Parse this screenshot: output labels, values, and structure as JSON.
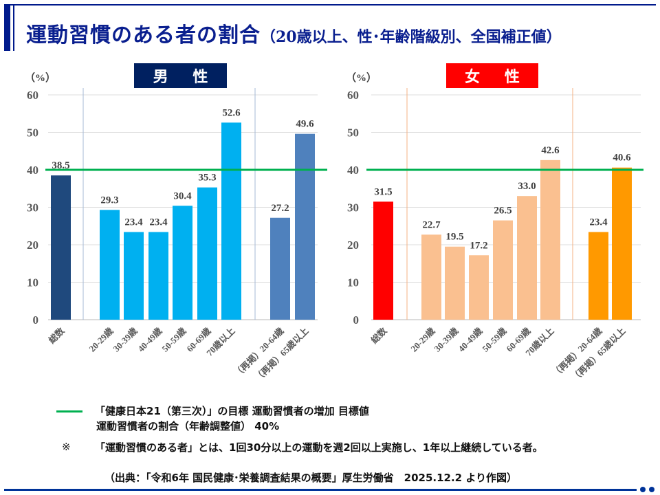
{
  "title": {
    "main": "運動習慣のある者の割合",
    "sub": "（20歳以上、性･年齢階級別、全国補正値）"
  },
  "colors": {
    "title": "#0a1f8f",
    "male_label_bg": "#002060",
    "female_label_bg": "#ff0000",
    "target_line": "#00b050",
    "male_total": "#1f497d",
    "male_age": "#00b0f0",
    "male_reprint": "#4f81bd",
    "female_total": "#ff0000",
    "female_age": "#fac090",
    "female_reprint": "#ff9900",
    "male_separator": "#a5b8d6",
    "female_separator": "#f4b183"
  },
  "chart_data": [
    {
      "type": "bar",
      "title": "男 性",
      "ylabel": "（%）",
      "ylim": [
        0,
        60
      ],
      "yticks": [
        0,
        10,
        20,
        30,
        40,
        50,
        60
      ],
      "grid": true,
      "categories": [
        "総数",
        "20-29歳",
        "30-39歳",
        "40-49歳",
        "50-59歳",
        "60-69歳",
        "70歳以上",
        "（再掲）20-64歳",
        "（再掲）65歳以上"
      ],
      "values": [
        38.5,
        29.3,
        23.4,
        23.4,
        30.4,
        35.3,
        52.6,
        27.2,
        49.6
      ],
      "value_labels": [
        "38.5",
        "29.3",
        "23.4",
        "23.4",
        "30.4",
        "35.3",
        "52.6",
        "27.2",
        "49.6"
      ],
      "groups": [
        "total",
        "age",
        "age",
        "age",
        "age",
        "age",
        "age",
        "reprint",
        "reprint"
      ],
      "target_line": 40
    },
    {
      "type": "bar",
      "title": "女 性",
      "ylabel": "（%）",
      "ylim": [
        0,
        60
      ],
      "yticks": [
        0,
        10,
        20,
        30,
        40,
        50,
        60
      ],
      "grid": true,
      "categories": [
        "総数",
        "20-29歳",
        "30-39歳",
        "40-49歳",
        "50-59歳",
        "60-69歳",
        "70歳以上",
        "（再掲）20-64歳",
        "（再掲）65歳以上"
      ],
      "values": [
        31.5,
        22.7,
        19.5,
        17.2,
        26.5,
        33.0,
        42.6,
        23.4,
        40.6
      ],
      "value_labels": [
        "31.5",
        "22.7",
        "19.5",
        "17.2",
        "26.5",
        "33.0",
        "42.6",
        "23.4",
        "40.6"
      ],
      "groups": [
        "total",
        "age",
        "age",
        "age",
        "age",
        "age",
        "age",
        "reprint",
        "reprint"
      ],
      "target_line": 40
    }
  ],
  "legend": {
    "line1": "「健康日本21（第三次）」の目標 運動習慣者の増加 目標値",
    "line2": "運動習慣者の割合（年齢調整値） 40%"
  },
  "note": {
    "mark": "※",
    "text": "「運動習慣のある者」とは、1回30分以上の運動を週2回以上実施し、1年以上継続している者。"
  },
  "source": "（出典：「令和6年 国民健康･栄養調査結果の概要」厚生労働省　2025.12.2 より作図）"
}
